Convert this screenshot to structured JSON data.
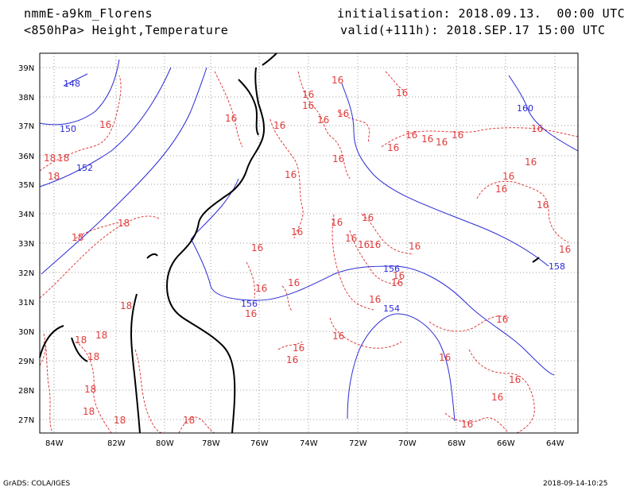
{
  "header": {
    "model": "nmmE-a9km_Florens",
    "field": "<850hPa> Height,Temperature",
    "init": "initialisation: 2018.09.13.  00:00 UTC",
    "valid": "valid(+111h): 2018.SEP.17 15:00 UTC"
  },
  "footer": {
    "left": "GrADS: COLA/IGES",
    "right": "2018-09-14-10:25"
  },
  "axes": {
    "lat_labels": [
      "39N",
      "38N",
      "37N",
      "36N",
      "35N",
      "34N",
      "33N",
      "32N",
      "31N",
      "30N",
      "29N",
      "28N",
      "27N"
    ],
    "lon_labels": [
      "84W",
      "82W",
      "80W",
      "78W",
      "76W",
      "74W",
      "72W",
      "70W",
      "68W",
      "66W",
      "64W"
    ]
  },
  "colors": {
    "height": "#2b2bd6",
    "temperature": "#e03c3c",
    "coast": "#000000",
    "grid": "#9a9a9a"
  },
  "height_labels": [
    "148",
    "150",
    "152",
    "160",
    "156",
    "156",
    "154",
    "158"
  ],
  "temp_labels": [
    "16",
    "16",
    "16",
    "16",
    "16",
    "16",
    "16",
    "16",
    "16",
    "16",
    "16",
    "16",
    "16",
    "16",
    "16",
    "16",
    "16",
    "16",
    "16",
    "16",
    "16",
    "16",
    "16",
    "16",
    "16",
    "16",
    "16",
    "16",
    "16",
    "16",
    "16",
    "16",
    "16",
    "16",
    "16",
    "16",
    "16",
    "16",
    "16",
    "16",
    "16",
    "16",
    "16",
    "16",
    "18",
    "18",
    "18",
    "18",
    "18",
    "18",
    "18",
    "18",
    "18",
    "18",
    "18",
    "18",
    "18"
  ]
}
